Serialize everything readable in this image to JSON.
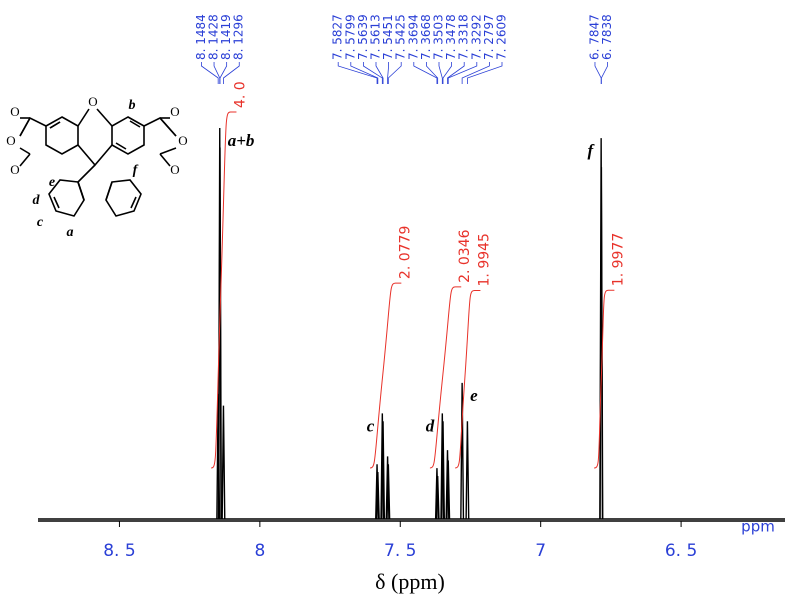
{
  "chart_data": {
    "type": "nmr",
    "xlabel": "δ (ppm)",
    "unit_label": "ppm",
    "xlim": [
      8.79,
      6.13
    ],
    "xticks": [
      {
        "value": 8.5,
        "label": "8. 5"
      },
      8,
      {
        "value": 7.5,
        "label": "7. 5"
      },
      7,
      {
        "value": 6.5,
        "label": "6. 5"
      }
    ],
    "color": "#000000",
    "integral_color": "#e8322a",
    "label_color": "#2a3fd6",
    "groups": [
      {
        "assignment": "a+b",
        "integral": {
          "value": 4.0,
          "label": "4. 0"
        },
        "peaks": [
          {
            "shift": {
              "value": 8.1484,
              "label": "8. 1484"
            },
            "height": 32
          },
          {
            "shift": {
              "value": 8.1428,
              "label": "8. 1428"
            },
            "height": 100
          },
          {
            "shift": {
              "value": 8.1419,
              "label": "8. 1419"
            },
            "height": 95
          },
          {
            "shift": {
              "value": 8.1296,
              "label": "8. 1296"
            },
            "height": 29
          }
        ]
      },
      {
        "assignment": "c",
        "integral": {
          "value": 2.0779,
          "label": "2. 0779"
        },
        "peaks": [
          {
            "shift": {
              "value": 7.5827,
              "label": "7. 5827"
            },
            "height": 14
          },
          {
            "shift": {
              "value": 7.5799,
              "label": "7. 5799"
            },
            "height": 12
          },
          {
            "shift": {
              "value": 7.5639,
              "label": "7. 5639"
            },
            "height": 27
          },
          {
            "shift": {
              "value": 7.5613,
              "label": "7. 5613"
            },
            "height": 25
          },
          {
            "shift": {
              "value": 7.5451,
              "label": "7. 5451"
            },
            "height": 16
          },
          {
            "shift": {
              "value": 7.5425,
              "label": "7. 5425"
            },
            "height": 14
          }
        ]
      },
      {
        "assignment": "d",
        "integral": {
          "value": 2.0346,
          "label": "2. 0346"
        },
        "peaks": [
          {
            "shift": {
              "value": 7.3694,
              "label": "7. 3694"
            },
            "height": 13
          },
          {
            "shift": {
              "value": 7.3668,
              "label": "7. 3668"
            },
            "height": 11
          },
          {
            "shift": {
              "value": 7.3503,
              "label": "7. 3503"
            },
            "height": 27
          },
          {
            "shift": {
              "value": 7.3478,
              "label": "7. 3478"
            },
            "height": 25
          },
          {
            "shift": {
              "value": 7.3318,
              "label": "7. 3318"
            },
            "height": 17.6
          },
          {
            "shift": {
              "value": 7.3292,
              "label": "7. 3292"
            },
            "height": 15
          }
        ]
      },
      {
        "assignment": "e",
        "integral": {
          "value": 1.9945,
          "label": "1. 9945"
        },
        "peaks": [
          {
            "shift": {
              "value": 7.2797,
              "label": "7. 2797"
            },
            "height": 34.8
          },
          {
            "shift": {
              "value": 7.2609,
              "label": "7. 2609"
            },
            "height": 25
          }
        ]
      },
      {
        "assignment": "f",
        "integral": {
          "value": 1.9977,
          "label": "1. 9977"
        },
        "peaks": [
          {
            "shift": {
              "value": 6.7847,
              "label": "6. 7847"
            },
            "height": 97.4
          },
          {
            "shift": {
              "value": 6.7838,
              "label": "6. 7838"
            },
            "height": 90
          }
        ]
      }
    ]
  },
  "structure": {
    "atoms": [
      "O",
      "O",
      "O",
      "O",
      "O",
      "O",
      "O"
    ],
    "labels": [
      "a",
      "b",
      "c",
      "d",
      "e",
      "f"
    ]
  }
}
